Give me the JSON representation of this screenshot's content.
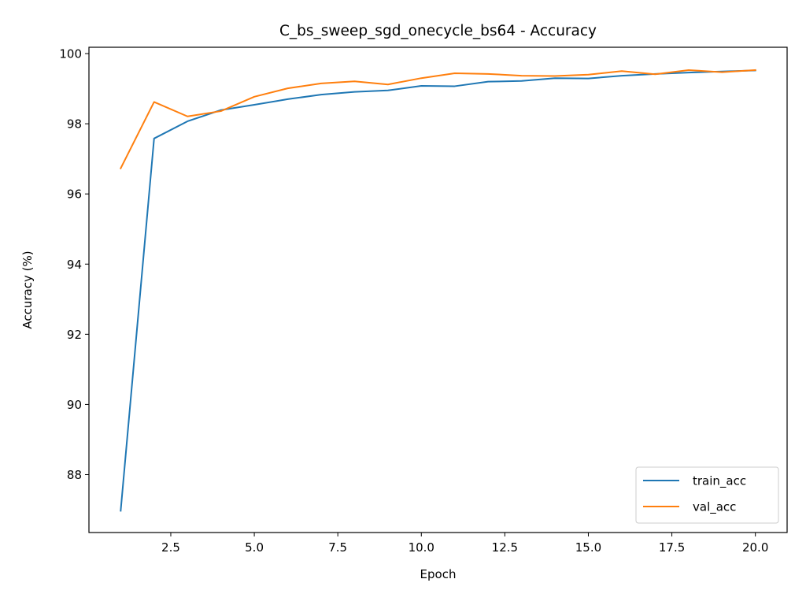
{
  "chart_data": {
    "type": "line",
    "title": "C_bs_sweep_sgd_onecycle_bs64 - Accuracy",
    "xlabel": "Epoch",
    "ylabel": "Accuracy (%)",
    "xlim": [
      0.05,
      20.95
    ],
    "ylim": [
      86.35,
      100.18
    ],
    "x_ticks": [
      2.5,
      5.0,
      7.5,
      10.0,
      12.5,
      15.0,
      17.5,
      20.0
    ],
    "x_tick_labels": [
      "2.5",
      "5.0",
      "7.5",
      "10.0",
      "12.5",
      "15.0",
      "17.5",
      "20.0"
    ],
    "y_ticks": [
      88,
      90,
      92,
      94,
      96,
      98,
      100
    ],
    "y_tick_labels": [
      "88",
      "90",
      "92",
      "94",
      "96",
      "98",
      "100"
    ],
    "grid": false,
    "legend_position": "bottom-right",
    "x": [
      1,
      2,
      3,
      4,
      5,
      6,
      7,
      8,
      9,
      10,
      11,
      12,
      13,
      14,
      15,
      16,
      17,
      18,
      19,
      20
    ],
    "series": [
      {
        "name": "train_acc",
        "color": "#1f77b4",
        "values": [
          86.97,
          97.58,
          98.07,
          98.39,
          98.54,
          98.7,
          98.83,
          98.91,
          98.95,
          99.08,
          99.07,
          99.2,
          99.22,
          99.3,
          99.29,
          99.37,
          99.42,
          99.46,
          99.49,
          99.52
        ]
      },
      {
        "name": "val_acc",
        "color": "#ff7f0e",
        "values": [
          96.73,
          98.62,
          98.21,
          98.36,
          98.77,
          99.01,
          99.15,
          99.21,
          99.12,
          99.3,
          99.44,
          99.42,
          99.37,
          99.36,
          99.4,
          99.5,
          99.41,
          99.53,
          99.47,
          99.53
        ]
      }
    ]
  }
}
